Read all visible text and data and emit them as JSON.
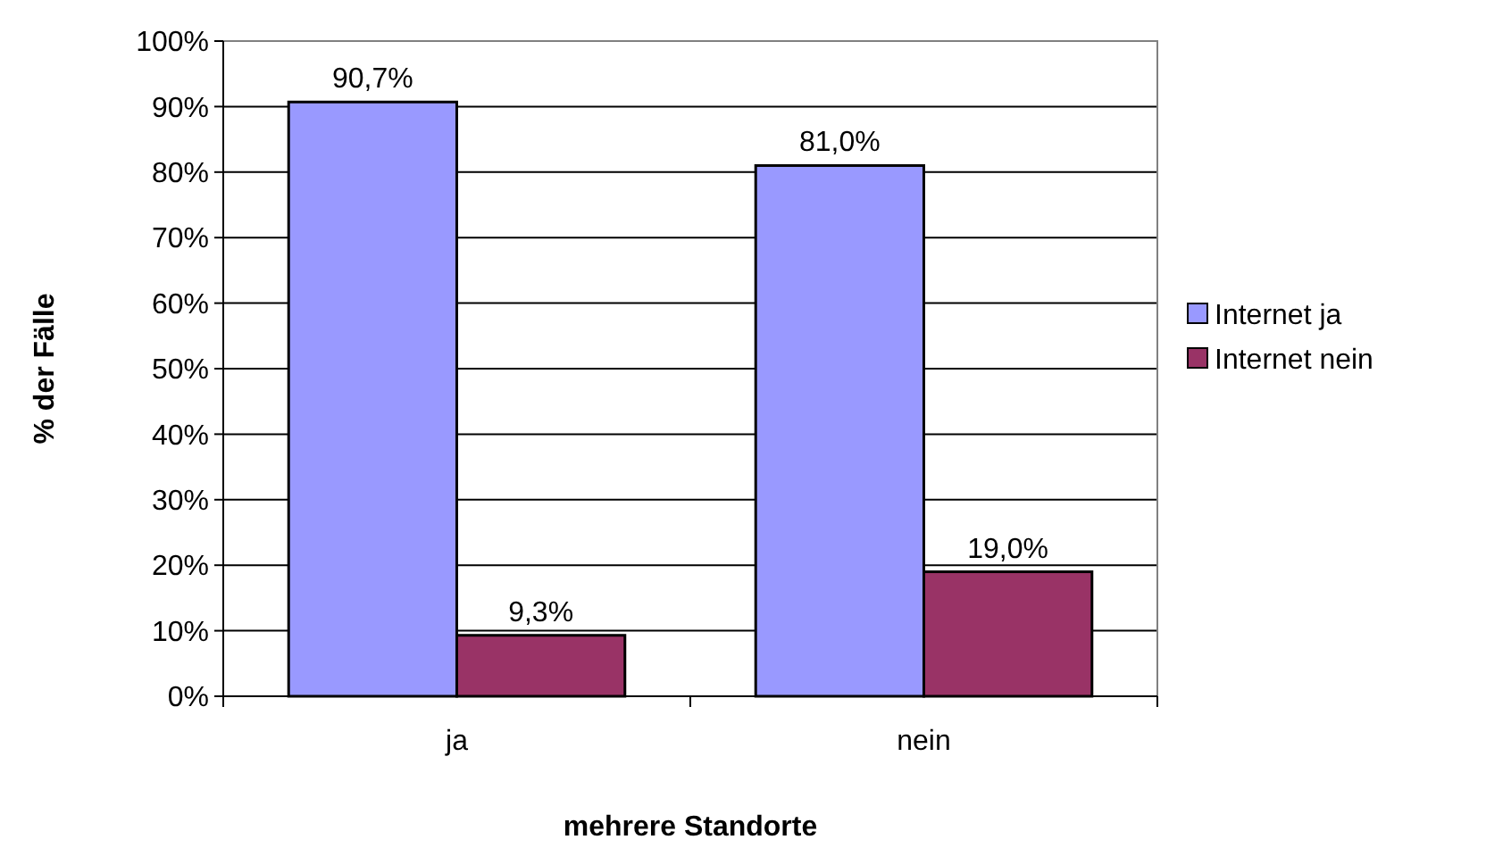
{
  "chart_data": {
    "type": "bar",
    "xlabel": "mehrere Standorte",
    "ylabel": "% der Fälle",
    "categories": [
      "ja",
      "nein"
    ],
    "series": [
      {
        "name": "Internet ja",
        "color": "#9999ff",
        "values": [
          90.7,
          81.0
        ],
        "value_labels": [
          "90,7%",
          "81,0%"
        ]
      },
      {
        "name": "Internet nein",
        "color": "#993366",
        "values": [
          9.3,
          19.0
        ],
        "value_labels": [
          "9,3%",
          "19,0%"
        ]
      }
    ],
    "ylim": [
      0,
      100
    ],
    "yticks": [
      {
        "value": 0,
        "label": "0%"
      },
      {
        "value": 10,
        "label": "10%"
      },
      {
        "value": 20,
        "label": "20%"
      },
      {
        "value": 30,
        "label": "30%"
      },
      {
        "value": 40,
        "label": "40%"
      },
      {
        "value": 50,
        "label": "50%"
      },
      {
        "value": 60,
        "label": "60%"
      },
      {
        "value": 70,
        "label": "70%"
      },
      {
        "value": 80,
        "label": "80%"
      },
      {
        "value": 90,
        "label": "90%"
      },
      {
        "value": 100,
        "label": "100%"
      }
    ],
    "grid": "y",
    "legend": "right"
  }
}
